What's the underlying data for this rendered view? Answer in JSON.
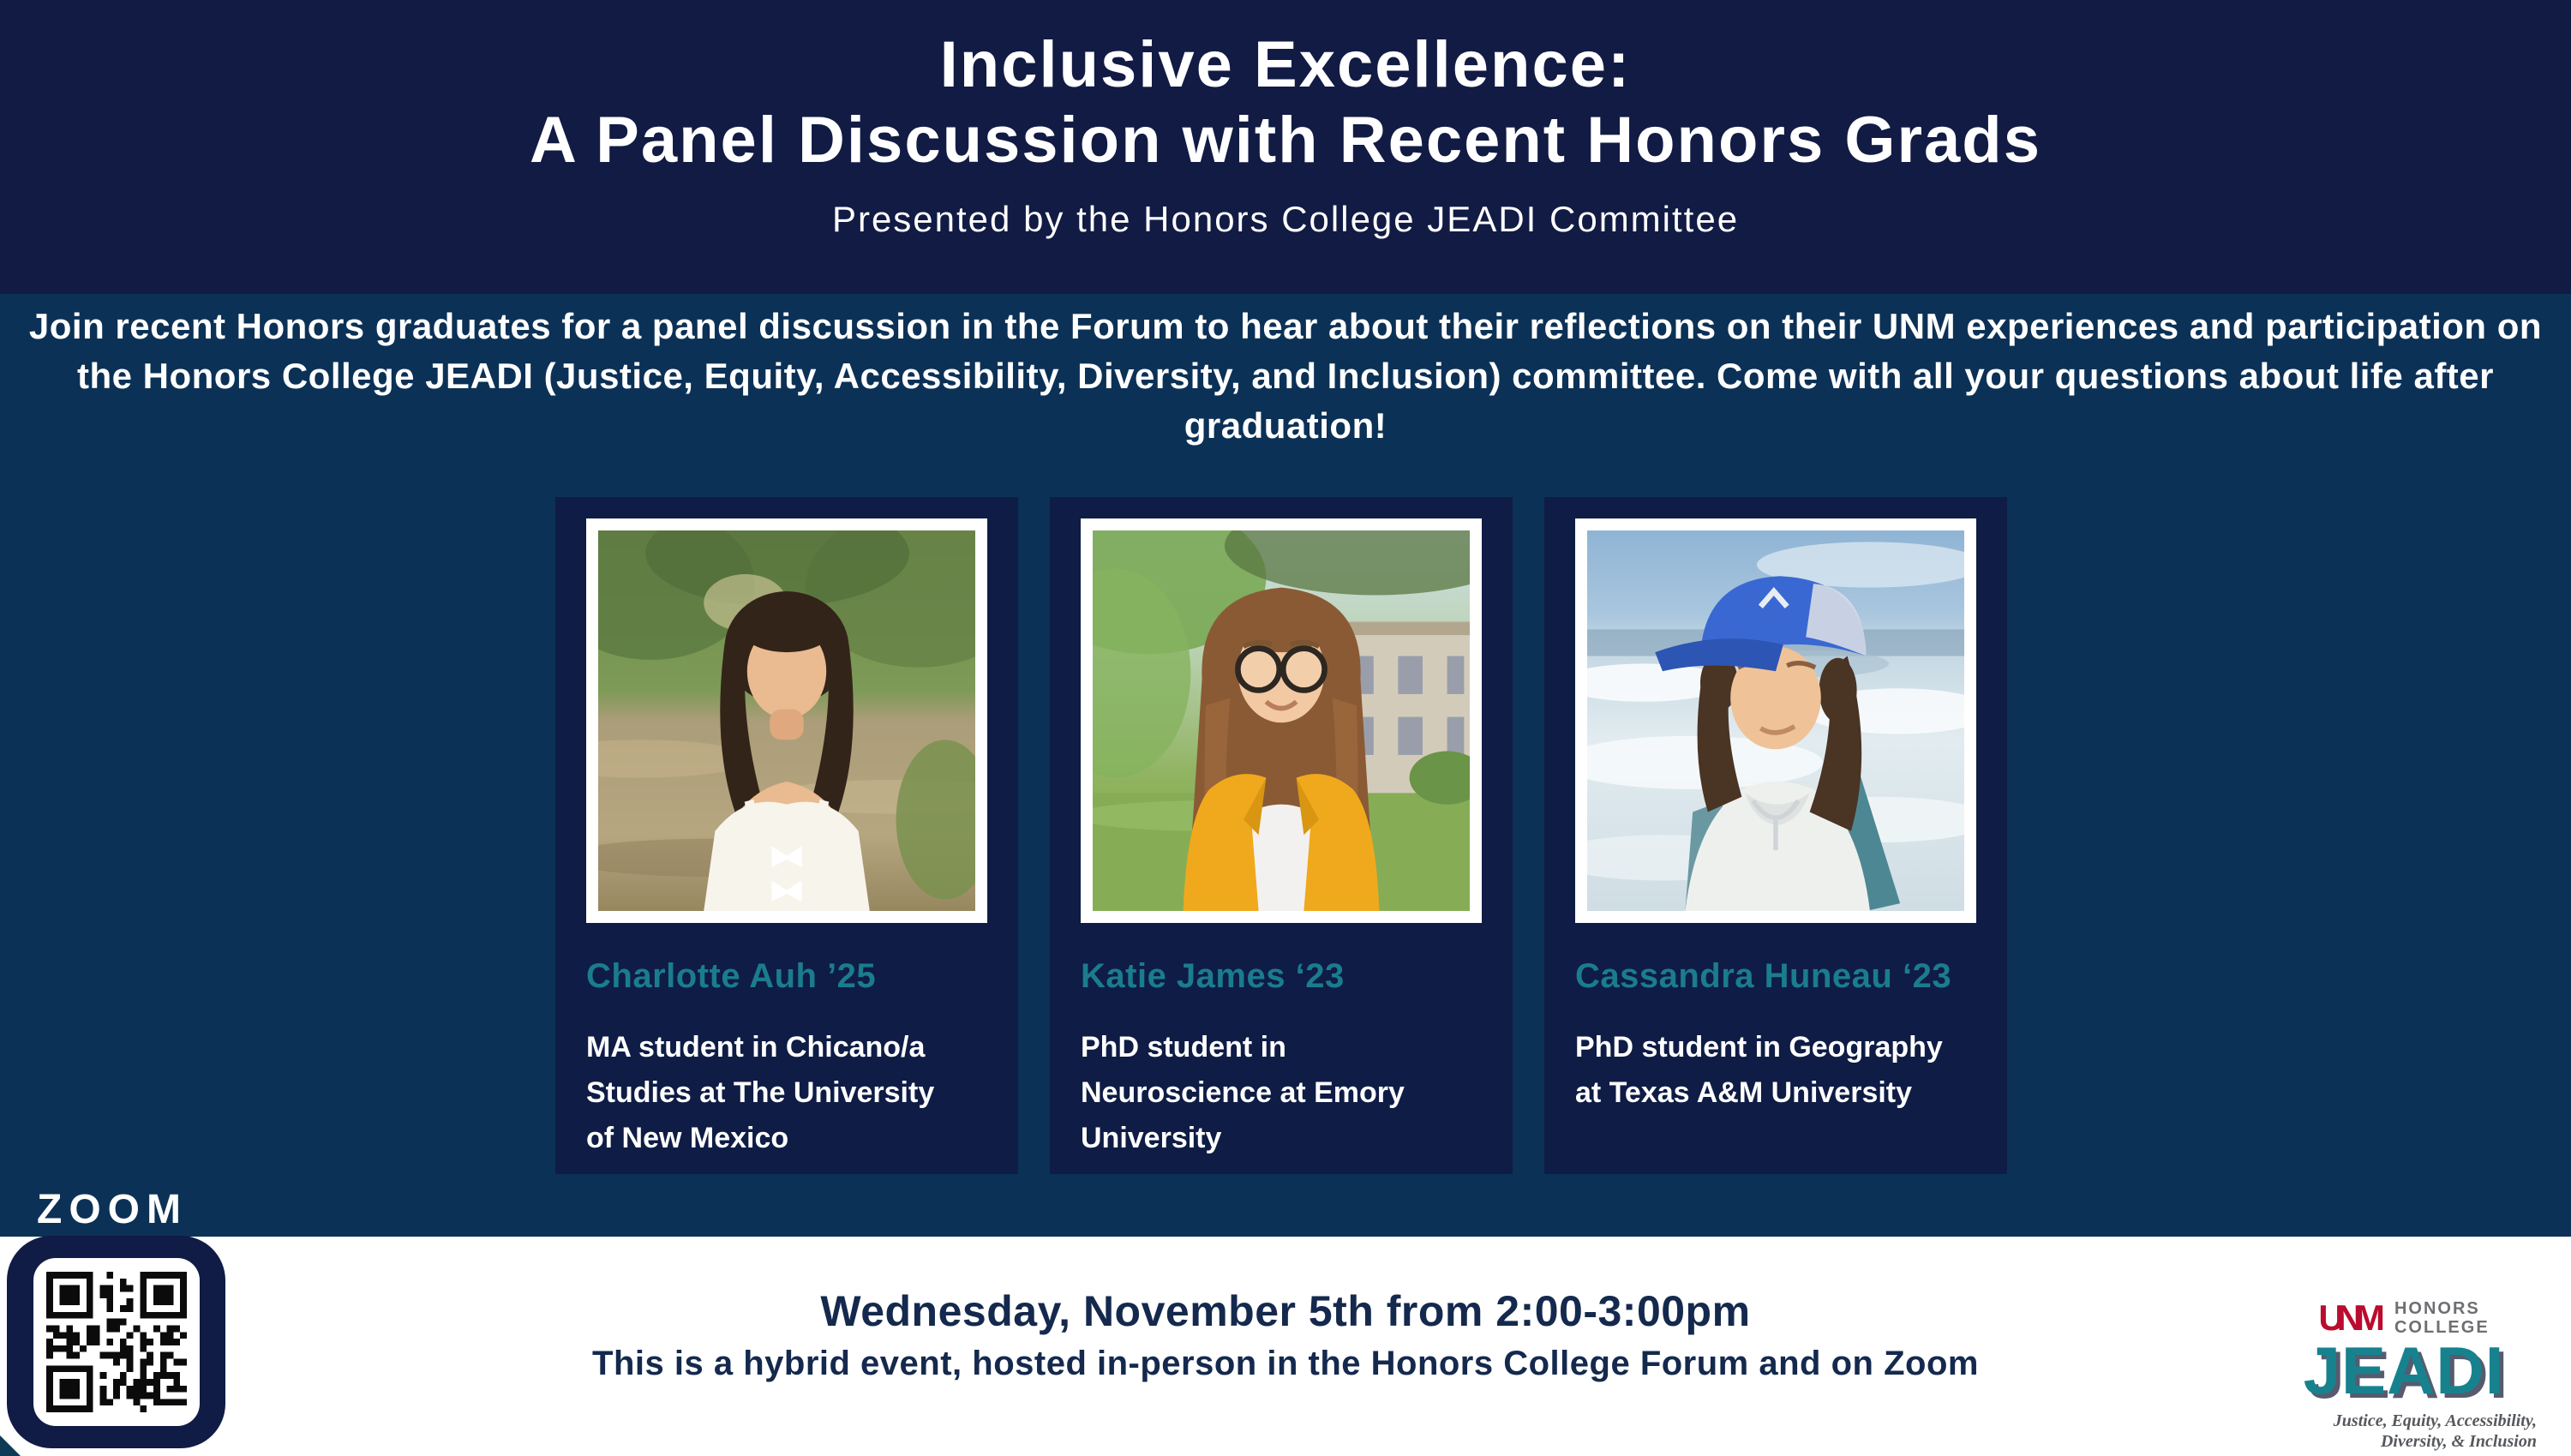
{
  "colors": {
    "header_navy": "#111b44",
    "body_navy": "#0c3156",
    "card_navy": "#0f1c45",
    "accent_teal": "#1b7c8e",
    "footer_text_navy": "#14294d",
    "jeadi_teal": "#17828e",
    "unm_red": "#ba0c2f",
    "logo_gray": "#6d6f72"
  },
  "header": {
    "title_line1": "Inclusive Excellence:",
    "title_line2": "A Panel Discussion with Recent Honors Grads",
    "subtitle": "Presented by the Honors College JEADI Committee"
  },
  "intro": "Join recent Honors graduates for a panel discussion in the Forum to hear about their reflections on their UNM experiences and participation on the Honors College JEADI (Justice, Equity, Accessibility, Diversity, and Inclusion) committee. Come with all your questions about life after graduation!",
  "panelists": [
    {
      "name": "Charlotte Auh ’25",
      "description": "MA student in Chicano/a Studies at The University of New Mexico",
      "photo": "portrait-outdoors-by-river"
    },
    {
      "name": "Katie James ‘23",
      "description": "PhD student in Neuroscience at Emory University",
      "photo": "portrait-campus-lawn-yellow-blazer"
    },
    {
      "name": "Cassandra Huneau ‘23",
      "description": "PhD student in Geography at Texas A&M University",
      "photo": "portrait-beach-blue-cap"
    }
  ],
  "footer": {
    "line1": "Wednesday, November 5th from 2:00-3:00pm",
    "line2": "This is a hybrid event, hosted in-person in the Honors College Forum and on Zoom"
  },
  "zoom": {
    "label": "ZOOM",
    "icon": "zoom-qr-code"
  },
  "logo": {
    "unm": "UNM",
    "org_line1": "HONORS",
    "org_line2": "COLLEGE",
    "acronym": "JEADI",
    "tagline_line1": "Justice, Equity, Accessibility,",
    "tagline_line2": "Diversity, & Inclusion"
  }
}
